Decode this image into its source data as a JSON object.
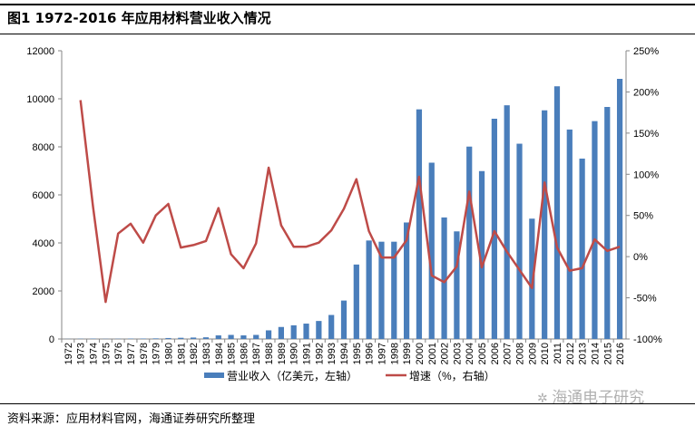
{
  "title": "图1  1972-2016 年应用材料营业收入情况",
  "source": "资料来源：应用材料官网，海通证券研究所整理",
  "watermark": "海通电子研究",
  "colors": {
    "bar": "#4a7ebb",
    "line": "#be4b48",
    "axis": "#868686"
  },
  "chart_data": {
    "type": "bar+line",
    "title": "1972-2016 年应用材料营业收入情况",
    "categories": [
      "1972",
      "1973",
      "1974",
      "1975",
      "1976",
      "1977",
      "1978",
      "1979",
      "1980",
      "1981",
      "1982",
      "1983",
      "1984",
      "1985",
      "1986",
      "1987",
      "1988",
      "1989",
      "1990",
      "1991",
      "1992",
      "1993",
      "1994",
      "1995",
      "1996",
      "1997",
      "1998",
      "1999",
      "2000",
      "2001",
      "2002",
      "2003",
      "2004",
      "2005",
      "2006",
      "2007",
      "2008",
      "2009",
      "2010",
      "2011",
      "2012",
      "2013",
      "2014",
      "2015",
      "2016"
    ],
    "series": [
      {
        "name": "营业收入（亿美元，左轴）",
        "type": "bar",
        "axis": "left",
        "values": [
          5,
          10,
          15,
          8,
          10,
          15,
          18,
          25,
          40,
          50,
          60,
          70,
          150,
          170,
          150,
          170,
          360,
          500,
          570,
          640,
          750,
          1000,
          1600,
          3100,
          4100,
          4050,
          4050,
          4850,
          9560,
          7340,
          5060,
          4480,
          8010,
          6990,
          9170,
          9730,
          8130,
          5010,
          9520,
          10520,
          8720,
          7510,
          9070,
          9660,
          10830
        ]
      },
      {
        "name": "增速（%，右轴）",
        "type": "line",
        "axis": "right",
        "values": [
          null,
          190,
          60,
          -55,
          28,
          40,
          17,
          50,
          64,
          11,
          14,
          19,
          59,
          3,
          -14,
          16,
          108,
          38,
          12,
          12,
          17,
          32,
          58,
          94,
          31,
          -1,
          -1,
          20,
          97,
          -23,
          -31,
          -12,
          79,
          -13,
          31,
          6,
          -16,
          -38,
          90,
          11,
          -17,
          -14,
          21,
          7,
          12
        ]
      }
    ],
    "left_axis": {
      "ylim": [
        0,
        12000
      ],
      "ticks": [
        "0",
        "2000",
        "4000",
        "6000",
        "8000",
        "10000",
        "12000"
      ]
    },
    "right_axis": {
      "ylim": [
        -100,
        250
      ],
      "ticks": [
        "-100%",
        "-50%",
        "0%",
        "50%",
        "100%",
        "150%",
        "200%",
        "250%"
      ]
    },
    "grid": false,
    "legend": "bottom-center"
  }
}
